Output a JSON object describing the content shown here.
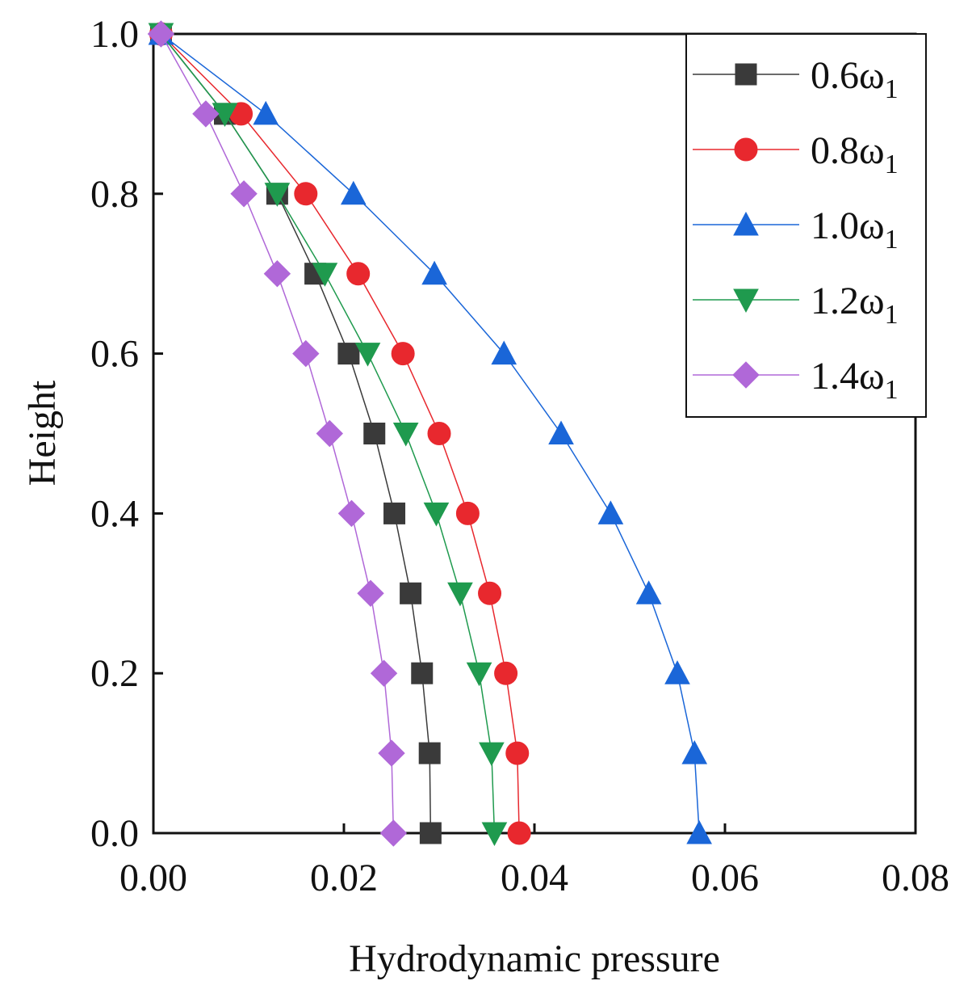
{
  "chart_data": {
    "type": "line",
    "title": "",
    "xlabel": "Hydrodynamic pressure",
    "ylabel": "Height",
    "xlim": [
      0,
      0.08
    ],
    "ylim": [
      0,
      1.0
    ],
    "xticks": [
      "0.00",
      "0.02",
      "0.04",
      "0.06",
      "0.08"
    ],
    "yticks": [
      "0.0",
      "0.2",
      "0.4",
      "0.6",
      "0.8",
      "1.0"
    ],
    "grid": false,
    "legend_position": "top-right",
    "y": [
      1.0,
      0.9,
      0.8,
      0.7,
      0.6,
      0.5,
      0.4,
      0.3,
      0.2,
      0.1,
      0.0
    ],
    "series": [
      {
        "name": "0.6ω",
        "subscript": "1",
        "color": "#3a3a3a",
        "marker": "square",
        "x": [
          0.0008,
          0.0075,
          0.013,
          0.017,
          0.0205,
          0.0232,
          0.0253,
          0.027,
          0.0282,
          0.029,
          0.0291
        ]
      },
      {
        "name": "0.8ω",
        "subscript": "1",
        "color": "#e8282e",
        "marker": "circle",
        "x": [
          0.0008,
          0.0092,
          0.016,
          0.0215,
          0.0262,
          0.03,
          0.033,
          0.0353,
          0.037,
          0.0382,
          0.0384
        ]
      },
      {
        "name": "1.0ω",
        "subscript": "1",
        "color": "#1a66d8",
        "marker": "triangle-up",
        "x": [
          0.0008,
          0.0118,
          0.021,
          0.0295,
          0.0368,
          0.0428,
          0.048,
          0.052,
          0.055,
          0.0568,
          0.0573
        ]
      },
      {
        "name": "1.2ω",
        "subscript": "1",
        "color": "#1f9a4e",
        "marker": "triangle-down",
        "x": [
          0.0008,
          0.0075,
          0.013,
          0.018,
          0.0225,
          0.0265,
          0.0297,
          0.0322,
          0.0342,
          0.0355,
          0.0358
        ]
      },
      {
        "name": "1.4ω",
        "subscript": "1",
        "color": "#b068d8",
        "marker": "diamond",
        "x": [
          0.0008,
          0.0055,
          0.0095,
          0.013,
          0.016,
          0.0185,
          0.0208,
          0.0228,
          0.0242,
          0.025,
          0.0252
        ]
      }
    ]
  }
}
